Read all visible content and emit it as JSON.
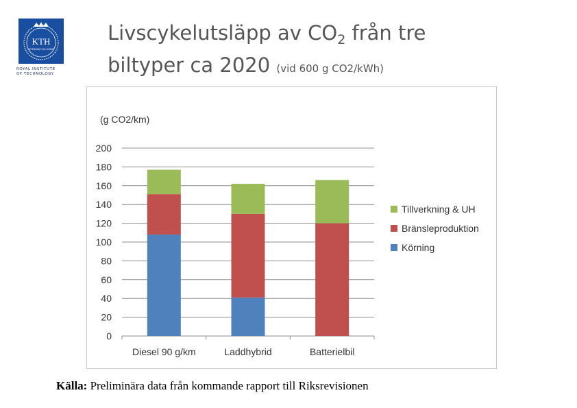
{
  "logo": {
    "text": "KTH",
    "sub_text": "VETENSKAP OCH KONST",
    "caption_line1": "ROYAL INSTITUTE",
    "caption_line2": "OF TECHNOLOGY"
  },
  "title": {
    "line1_prefix": "Livscykelutsläpp av CO",
    "line1_sub": "2",
    "line1_suffix": " från tre",
    "line2_main": "biltyper ca 2020",
    "line2_note": "(vid 600 g CO2/kWh)"
  },
  "source": {
    "label": "Källa:",
    "text": " Preliminära data från kommande rapport till Riksrevisionen"
  },
  "colors": {
    "korning": "#4f81bd",
    "bransle": "#c0504d",
    "tillverkning": "#9bbb59",
    "brand": "#1a4ea0"
  },
  "chart_data": {
    "type": "bar",
    "stacked": true,
    "ylabel": "(g CO2/km)",
    "ylim": [
      0,
      200
    ],
    "ytick_step": 20,
    "grid": true,
    "legend_position": "right",
    "categories": [
      "Diesel 90 g/km",
      "Laddhybrid",
      "Batterielbil"
    ],
    "series": [
      {
        "name": "Körning",
        "color": "#4f81bd",
        "values": [
          108,
          41,
          0
        ]
      },
      {
        "name": "Bränsleproduktion",
        "color": "#c0504d",
        "values": [
          43,
          89,
          120
        ]
      },
      {
        "name": "Tillverkning & UH",
        "color": "#9bbb59",
        "values": [
          26,
          32,
          46
        ]
      }
    ]
  }
}
